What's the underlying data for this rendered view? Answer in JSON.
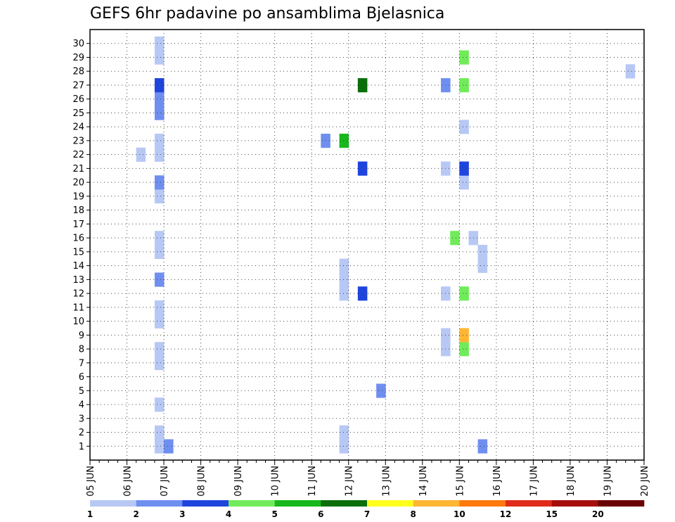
{
  "chart_data": {
    "type": "heatmap",
    "title": "GEFS 6hr padavine po ansamblima Bjelasnica",
    "xlabel": "",
    "ylabel": "",
    "x_start_hours": 0,
    "x_end_hours": 360,
    "x_step_hours": 6,
    "x_tick_labels": [
      "05 JUN",
      "06 JUN",
      "07 JUN",
      "08 JUN",
      "09 JUN",
      "10 JUN",
      "11 JUN",
      "12 JUN",
      "13 JUN",
      "14 JUN",
      "15 JUN",
      "16 JUN",
      "17 JUN",
      "18 JUN",
      "19 JUN",
      "20 JUN"
    ],
    "y_tick_labels": [
      "1",
      "2",
      "3",
      "4",
      "5",
      "6",
      "7",
      "8",
      "9",
      "10",
      "11",
      "12",
      "13",
      "14",
      "15",
      "16",
      "17",
      "18",
      "19",
      "20",
      "21",
      "22",
      "23",
      "24",
      "25",
      "26",
      "27",
      "28",
      "29",
      "30"
    ],
    "grid": true,
    "colorbar": {
      "bins": [
        {
          "color": "#b8c8f5"
        },
        {
          "color": "#6f8ff0"
        },
        {
          "color": "#1f44dd"
        },
        {
          "color": "#70ec5a"
        },
        {
          "color": "#16b81c"
        },
        {
          "color": "#0a6e0a"
        },
        {
          "color": "#ffff1e"
        },
        {
          "color": "#ffb633"
        },
        {
          "color": "#ff7a0d"
        },
        {
          "color": "#e02b1a"
        },
        {
          "color": "#a50d0d"
        },
        {
          "color": "#6a0303"
        }
      ],
      "labels": [
        "1",
        "2",
        "3",
        "4",
        "5",
        "6",
        "7",
        "8",
        "10",
        "12",
        "15",
        "20"
      ]
    },
    "cells": [
      [
        1,
        7,
        1
      ],
      [
        1,
        8,
        2
      ],
      [
        1,
        27,
        1
      ],
      [
        1,
        42,
        2
      ],
      [
        1,
        64,
        4
      ],
      [
        1,
        66,
        3
      ],
      [
        1,
        78,
        3
      ],
      [
        1,
        84,
        2
      ],
      [
        1,
        86,
        9
      ],
      [
        1,
        88,
        8
      ],
      [
        1,
        90,
        1
      ],
      [
        1,
        156,
        1
      ],
      [
        1,
        162,
        1
      ],
      [
        2,
        7,
        1
      ],
      [
        2,
        27,
        1
      ],
      [
        2,
        79,
        4
      ],
      [
        2,
        81,
        1
      ],
      [
        2,
        118,
        8
      ],
      [
        2,
        120,
        3
      ],
      [
        2,
        127,
        6
      ],
      [
        2,
        129,
        5
      ],
      [
        2,
        131,
        2
      ],
      [
        2,
        134,
        3
      ],
      [
        2,
        136,
        4
      ],
      [
        2,
        138,
        4
      ],
      [
        2,
        149,
        2
      ],
      [
        2,
        151,
        2
      ],
      [
        2,
        160,
        2
      ],
      [
        2,
        162,
        4
      ],
      [
        2,
        174,
        1
      ],
      [
        3,
        85,
        4
      ],
      [
        3,
        101,
        3
      ],
      [
        3,
        103,
        8
      ],
      [
        3,
        105,
        1
      ],
      [
        3,
        107,
        1
      ],
      [
        3,
        174,
        2
      ],
      [
        4,
        7,
        1
      ],
      [
        4,
        64,
        1
      ],
      [
        4,
        66,
        4
      ],
      [
        4,
        73,
        3
      ],
      [
        4,
        75,
        3
      ],
      [
        4,
        82,
        1
      ],
      [
        4,
        84,
        2
      ],
      [
        4,
        86,
        3
      ],
      [
        4,
        101,
        4
      ],
      [
        4,
        111,
        2
      ],
      [
        4,
        113,
        1
      ],
      [
        4,
        115,
        4
      ],
      [
        4,
        117,
        1
      ],
      [
        4,
        121,
        5
      ],
      [
        4,
        123,
        3
      ],
      [
        4,
        127,
        4
      ],
      [
        4,
        129,
        7
      ],
      [
        4,
        131,
        2
      ],
      [
        4,
        136,
        4
      ],
      [
        4,
        138,
        9
      ],
      [
        4,
        140,
        2
      ],
      [
        4,
        144,
        4
      ],
      [
        4,
        146,
        3
      ],
      [
        5,
        31,
        2
      ],
      [
        6,
        80,
        1
      ],
      [
        6,
        98,
        5
      ],
      [
        6,
        100,
        10
      ],
      [
        6,
        121,
        1
      ],
      [
        6,
        123,
        1
      ],
      [
        6,
        170,
        3
      ],
      [
        6,
        172,
        2
      ],
      [
        6,
        174,
        4
      ],
      [
        7,
        7,
        1
      ],
      [
        7,
        84,
        3
      ],
      [
        7,
        86,
        5
      ],
      [
        7,
        152,
        1
      ],
      [
        7,
        154,
        1
      ],
      [
        7,
        174,
        5
      ],
      [
        8,
        7,
        1
      ],
      [
        8,
        38,
        1
      ],
      [
        8,
        40,
        4
      ],
      [
        8,
        66,
        1
      ],
      [
        8,
        78,
        2
      ],
      [
        8,
        101,
        1
      ],
      [
        8,
        103,
        1
      ],
      [
        8,
        113,
        4
      ],
      [
        8,
        115,
        3
      ],
      [
        8,
        148,
        3
      ],
      [
        9,
        38,
        1
      ],
      [
        9,
        40,
        8
      ],
      [
        9,
        84,
        1
      ],
      [
        9,
        86,
        9
      ],
      [
        9,
        88,
        7
      ],
      [
        9,
        132,
        1
      ],
      [
        10,
        7,
        1
      ],
      [
        10,
        66,
        1
      ],
      [
        10,
        96,
        1
      ],
      [
        10,
        100,
        3
      ],
      [
        10,
        121,
        4
      ],
      [
        10,
        123,
        7
      ],
      [
        10,
        132,
        5
      ],
      [
        10,
        144,
        3
      ],
      [
        10,
        146,
        3
      ],
      [
        10,
        148,
        3
      ],
      [
        10,
        150,
        2
      ],
      [
        10,
        152,
        5
      ],
      [
        10,
        154,
        7
      ],
      [
        10,
        156,
        1
      ],
      [
        10,
        158,
        2
      ],
      [
        11,
        7,
        1
      ],
      [
        11,
        66,
        1
      ],
      [
        11,
        94,
        1
      ],
      [
        11,
        100,
        3
      ],
      [
        11,
        132,
        5
      ],
      [
        11,
        142,
        1
      ],
      [
        11,
        146,
        5
      ],
      [
        11,
        154,
        3
      ],
      [
        11,
        174,
        3
      ],
      [
        12,
        27,
        1
      ],
      [
        12,
        29,
        3
      ],
      [
        12,
        38,
        1
      ],
      [
        12,
        40,
        4
      ],
      [
        12,
        98,
        2
      ],
      [
        12,
        100,
        2
      ],
      [
        12,
        142,
        2
      ],
      [
        12,
        144,
        3
      ],
      [
        12,
        152,
        1
      ],
      [
        12,
        154,
        3
      ],
      [
        12,
        172,
        2
      ],
      [
        12,
        174,
        2
      ],
      [
        13,
        7,
        2
      ],
      [
        13,
        27,
        1
      ],
      [
        13,
        102,
        1
      ],
      [
        13,
        104,
        1
      ],
      [
        13,
        106,
        5
      ],
      [
        13,
        108,
        4
      ],
      [
        13,
        110,
        3
      ],
      [
        13,
        112,
        5
      ],
      [
        13,
        114,
        4
      ],
      [
        13,
        116,
        2
      ],
      [
        13,
        118,
        2
      ],
      [
        13,
        120,
        2
      ],
      [
        13,
        142,
        3
      ],
      [
        13,
        144,
        3
      ],
      [
        13,
        152,
        1
      ],
      [
        13,
        154,
        2
      ],
      [
        13,
        172,
        2
      ],
      [
        13,
        174,
        2
      ],
      [
        14,
        27,
        1
      ],
      [
        14,
        42,
        1
      ],
      [
        14,
        120,
        2
      ],
      [
        15,
        7,
        1
      ],
      [
        15,
        42,
        1
      ],
      [
        15,
        80,
        1
      ],
      [
        15,
        84,
        1
      ],
      [
        15,
        86,
        5
      ],
      [
        15,
        100,
        1
      ],
      [
        15,
        154,
        5
      ],
      [
        15,
        172,
        2
      ],
      [
        15,
        174,
        2
      ],
      [
        16,
        7,
        1
      ],
      [
        16,
        39,
        4
      ],
      [
        16,
        41,
        1
      ],
      [
        16,
        79,
        5
      ],
      [
        16,
        81,
        4
      ],
      [
        16,
        85,
        2
      ],
      [
        16,
        87,
        3
      ],
      [
        16,
        107,
        4
      ],
      [
        16,
        109,
        3
      ],
      [
        16,
        126,
        7
      ],
      [
        16,
        142,
        3
      ],
      [
        16,
        144,
        8
      ],
      [
        16,
        146,
        7
      ],
      [
        16,
        148,
        4
      ],
      [
        16,
        150,
        3
      ],
      [
        16,
        152,
        2
      ],
      [
        16,
        154,
        4
      ],
      [
        16,
        172,
        2
      ],
      [
        16,
        174,
        3
      ],
      [
        17,
        76,
        2
      ],
      [
        17,
        78,
        5
      ],
      [
        17,
        84,
        2
      ],
      [
        17,
        86,
        3
      ],
      [
        17,
        107,
        4
      ],
      [
        17,
        109,
        3
      ],
      [
        17,
        126,
        7
      ],
      [
        17,
        142,
        3
      ],
      [
        17,
        144,
        8
      ],
      [
        17,
        146,
        7
      ],
      [
        17,
        148,
        4
      ],
      [
        17,
        150,
        3
      ],
      [
        17,
        152,
        2
      ],
      [
        17,
        154,
        4
      ],
      [
        17,
        172,
        2
      ],
      [
        17,
        174,
        3
      ],
      [
        18,
        76,
        1
      ],
      [
        18,
        78,
        7
      ],
      [
        18,
        80,
        5
      ],
      [
        18,
        84,
        3
      ],
      [
        18,
        86,
        1
      ],
      [
        18,
        109,
        5
      ],
      [
        18,
        114,
        2
      ],
      [
        18,
        116,
        1
      ],
      [
        19,
        7,
        1
      ],
      [
        19,
        68,
        1
      ],
      [
        19,
        122,
        3
      ],
      [
        19,
        124,
        6
      ],
      [
        19,
        126,
        1
      ],
      [
        19,
        130,
        2
      ],
      [
        19,
        132,
        5
      ],
      [
        19,
        148,
        1
      ],
      [
        19,
        152,
        1
      ],
      [
        19,
        154,
        7
      ],
      [
        19,
        156,
        12
      ],
      [
        19,
        158,
        3
      ],
      [
        19,
        163,
        1
      ],
      [
        20,
        7,
        2
      ],
      [
        20,
        40,
        1
      ],
      [
        20,
        102,
        2
      ],
      [
        20,
        105,
        2
      ],
      [
        20,
        116,
        2
      ],
      [
        20,
        152,
        1
      ],
      [
        20,
        154,
        2
      ],
      [
        21,
        29,
        3
      ],
      [
        21,
        38,
        1
      ],
      [
        21,
        40,
        3
      ],
      [
        21,
        64,
        1
      ],
      [
        21,
        86,
        3
      ],
      [
        21,
        88,
        5
      ],
      [
        21,
        102,
        1
      ],
      [
        21,
        104,
        4
      ],
      [
        21,
        106,
        4
      ],
      [
        21,
        108,
        5
      ],
      [
        21,
        142,
        2
      ],
      [
        21,
        144,
        4
      ],
      [
        21,
        146,
        7
      ],
      [
        21,
        148,
        1
      ],
      [
        21,
        150,
        5
      ],
      [
        21,
        152,
        1
      ],
      [
        21,
        154,
        7
      ],
      [
        21,
        158,
        1
      ],
      [
        21,
        160,
        4
      ],
      [
        22,
        5,
        1
      ],
      [
        22,
        7,
        1
      ],
      [
        22,
        80,
        1
      ],
      [
        22,
        86,
        3
      ],
      [
        22,
        88,
        7
      ],
      [
        22,
        90,
        3
      ],
      [
        22,
        116,
        1
      ],
      [
        22,
        124,
        3
      ],
      [
        22,
        126,
        7
      ],
      [
        22,
        132,
        1
      ],
      [
        22,
        146,
        2
      ],
      [
        22,
        174,
        10
      ],
      [
        23,
        7,
        1
      ],
      [
        23,
        25,
        2
      ],
      [
        23,
        27,
        5
      ],
      [
        23,
        98,
        1
      ],
      [
        23,
        172,
        1
      ],
      [
        24,
        40,
        1
      ],
      [
        24,
        90,
        3
      ],
      [
        24,
        124,
        1
      ],
      [
        24,
        172,
        3
      ],
      [
        24,
        174,
        3
      ],
      [
        24,
        176,
        2
      ],
      [
        25,
        7,
        2
      ],
      [
        25,
        82,
        3
      ],
      [
        25,
        84,
        1
      ],
      [
        25,
        88,
        5
      ],
      [
        25,
        90,
        6
      ],
      [
        25,
        92,
        3
      ],
      [
        25,
        94,
        3
      ],
      [
        25,
        96,
        3
      ],
      [
        25,
        98,
        3
      ],
      [
        25,
        116,
        5
      ],
      [
        25,
        124,
        4
      ],
      [
        25,
        126,
        3
      ],
      [
        25,
        136,
        3
      ],
      [
        25,
        142,
        8
      ],
      [
        25,
        144,
        10
      ],
      [
        25,
        146,
        1
      ],
      [
        25,
        150,
        5
      ],
      [
        25,
        152,
        1
      ],
      [
        26,
        7,
        2
      ],
      [
        26,
        93,
        1
      ],
      [
        26,
        96,
        3
      ],
      [
        26,
        98,
        1
      ],
      [
        26,
        120,
        1
      ],
      [
        27,
        7,
        3
      ],
      [
        27,
        29,
        6
      ],
      [
        27,
        38,
        2
      ],
      [
        27,
        40,
        4
      ],
      [
        27,
        124,
        1
      ],
      [
        27,
        174,
        1
      ],
      [
        28,
        58,
        1
      ],
      [
        28,
        138,
        2
      ],
      [
        28,
        142,
        1
      ],
      [
        28,
        144,
        2
      ],
      [
        28,
        146,
        4
      ],
      [
        28,
        148,
        5
      ],
      [
        28,
        150,
        4
      ],
      [
        28,
        152,
        5
      ],
      [
        28,
        154,
        1
      ],
      [
        28,
        160,
        4
      ],
      [
        29,
        7,
        1
      ],
      [
        29,
        40,
        4
      ],
      [
        29,
        159,
        2
      ],
      [
        29,
        161,
        1
      ],
      [
        30,
        7,
        1
      ]
    ]
  }
}
